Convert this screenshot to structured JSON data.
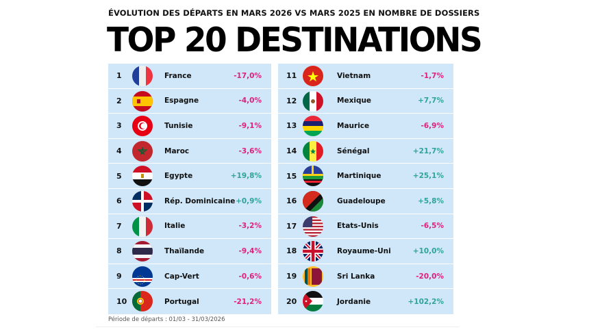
{
  "subtitle": "ÉVOLUTION DES DÉPARTS EN MARS 2026 VS MARS 2025 EN NOMBRE DE DOSSIERS",
  "title": "TOP 20 DESTINATIONS",
  "colors": {
    "negative": "#e0217a",
    "positive": "#2fa397",
    "panel": "#cfe7f8"
  },
  "left": [
    {
      "rank": "1",
      "name": "France",
      "value": "-17,0%",
      "flag": "fr"
    },
    {
      "rank": "2",
      "name": "Espagne",
      "value": "-4,0%",
      "flag": "es"
    },
    {
      "rank": "3",
      "name": "Tunisie",
      "value": "-9,1%",
      "flag": "tn"
    },
    {
      "rank": "4",
      "name": "Maroc",
      "value": "-3,6%",
      "flag": "ma"
    },
    {
      "rank": "5",
      "name": "Egypte",
      "value": "+19,8%",
      "flag": "eg"
    },
    {
      "rank": "6",
      "name": "Rép. Dominicaine",
      "value": "+0,9%",
      "flag": "do"
    },
    {
      "rank": "7",
      "name": "Italie",
      "value": "-3,2%",
      "flag": "it"
    },
    {
      "rank": "8",
      "name": "Thaïlande",
      "value": "-9,4%",
      "flag": "th"
    },
    {
      "rank": "9",
      "name": "Cap-Vert",
      "value": "-0,6%",
      "flag": "cv"
    },
    {
      "rank": "10",
      "name": "Portugal",
      "value": "-21,2%",
      "flag": "pt"
    }
  ],
  "right": [
    {
      "rank": "11",
      "name": "Vietnam",
      "value": "-1,7%",
      "flag": "vn"
    },
    {
      "rank": "12",
      "name": "Mexique",
      "value": "+7,7%",
      "flag": "mx"
    },
    {
      "rank": "13",
      "name": "Maurice",
      "value": "-6,9%",
      "flag": "mu"
    },
    {
      "rank": "14",
      "name": "Sénégal",
      "value": "+21,7%",
      "flag": "sn"
    },
    {
      "rank": "15",
      "name": "Martinique",
      "value": "+25,1%",
      "flag": "mq"
    },
    {
      "rank": "16",
      "name": "Guadeloupe",
      "value": "+5,8%",
      "flag": "gp"
    },
    {
      "rank": "17",
      "name": "Etats-Unis",
      "value": "-6,5%",
      "flag": "us"
    },
    {
      "rank": "18",
      "name": "Royaume-Uni",
      "value": "+10,0%",
      "flag": "gb"
    },
    {
      "rank": "19",
      "name": "Sri Lanka",
      "value": "-20,0%",
      "flag": "lk"
    },
    {
      "rank": "20",
      "name": "Jordanie",
      "value": "+102,2%",
      "flag": "jo"
    }
  ],
  "footer": "Période de départs : 01/03 - 31/03/2026"
}
